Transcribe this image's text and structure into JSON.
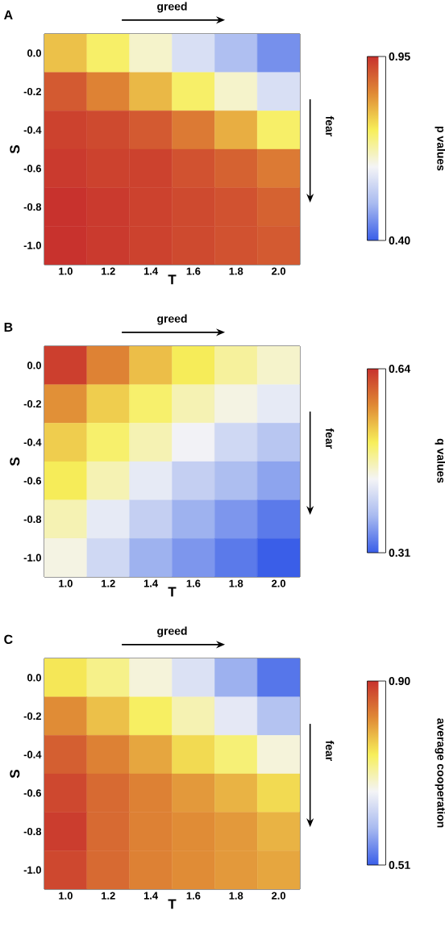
{
  "chart_data": [
    {
      "type": "heatmap",
      "title": "A",
      "xlabel": "T",
      "ylabel": "S",
      "clabel": "p values",
      "annotations": [
        "greed",
        "fear"
      ],
      "categories": [
        "1.0",
        "1.2",
        "1.4",
        "1.6",
        "1.8",
        "2.0"
      ],
      "y_categories": [
        "0.0",
        "-0.2",
        "-0.4",
        "-0.6",
        "-0.8",
        "-1.0"
      ],
      "clim": [
        0.4,
        0.95
      ],
      "cticks": [
        {
          "value": 0.4,
          "label": "0.40"
        },
        {
          "value": 0.95,
          "label": "0.95"
        }
      ],
      "colors": [
        "#3a5ee8",
        "#a8baf0",
        "#f4f4f6",
        "#f7ef5a",
        "#e08a35",
        "#c8322d"
      ],
      "cells": [
        [
          0.78,
          0.72,
          0.65,
          0.58,
          0.52,
          0.46
        ],
        [
          0.9,
          0.85,
          0.79,
          0.72,
          0.65,
          0.58
        ],
        [
          0.93,
          0.92,
          0.9,
          0.86,
          0.8,
          0.72
        ],
        [
          0.94,
          0.93,
          0.93,
          0.91,
          0.89,
          0.86
        ],
        [
          0.95,
          0.94,
          0.93,
          0.92,
          0.91,
          0.89
        ],
        [
          0.95,
          0.94,
          0.93,
          0.92,
          0.91,
          0.9
        ]
      ]
    },
    {
      "type": "heatmap",
      "title": "B",
      "xlabel": "T",
      "ylabel": "S",
      "clabel": "q values",
      "annotations": [
        "greed",
        "fear"
      ],
      "categories": [
        "1.0",
        "1.2",
        "1.4",
        "1.6",
        "1.8",
        "2.0"
      ],
      "y_categories": [
        "0.0",
        "-0.2",
        "-0.4",
        "-0.6",
        "-0.8",
        "-1.0"
      ],
      "clim": [
        0.31,
        0.64
      ],
      "cticks": [
        {
          "value": 0.31,
          "label": "0.31"
        },
        {
          "value": 0.64,
          "label": "0.64"
        }
      ],
      "colors": [
        "#3a5ee8",
        "#a8baf0",
        "#f4f4f6",
        "#f7ef5a",
        "#e08a35",
        "#c8322d"
      ],
      "cells": [
        [
          0.63,
          0.58,
          0.54,
          0.51,
          0.48,
          0.46
        ],
        [
          0.57,
          0.53,
          0.5,
          0.47,
          0.45,
          0.43
        ],
        [
          0.53,
          0.5,
          0.47,
          0.44,
          0.41,
          0.39
        ],
        [
          0.51,
          0.47,
          0.43,
          0.4,
          0.38,
          0.36
        ],
        [
          0.47,
          0.43,
          0.4,
          0.37,
          0.35,
          0.33
        ],
        [
          0.45,
          0.41,
          0.37,
          0.35,
          0.33,
          0.31
        ]
      ]
    },
    {
      "type": "heatmap",
      "title": "C",
      "xlabel": "T",
      "ylabel": "S",
      "clabel": "average cooperation",
      "annotations": [
        "greed",
        "fear"
      ],
      "categories": [
        "1.0",
        "1.2",
        "1.4",
        "1.6",
        "1.8",
        "2.0"
      ],
      "y_categories": [
        "0.0",
        "-0.2",
        "-0.4",
        "-0.6",
        "-0.8",
        "-1.0"
      ],
      "clim": [
        0.51,
        0.9
      ],
      "cticks": [
        {
          "value": 0.51,
          "label": "0.51"
        },
        {
          "value": 0.9,
          "label": "0.90"
        }
      ],
      "colors": [
        "#3a5ee8",
        "#a8baf0",
        "#f4f4f6",
        "#f7ef5a",
        "#e08a35",
        "#c8322d"
      ],
      "cells": [
        [
          0.75,
          0.72,
          0.68,
          0.64,
          0.58,
          0.53
        ],
        [
          0.82,
          0.78,
          0.74,
          0.7,
          0.65,
          0.6
        ],
        [
          0.86,
          0.83,
          0.8,
          0.76,
          0.73,
          0.68
        ],
        [
          0.88,
          0.85,
          0.83,
          0.81,
          0.79,
          0.76
        ],
        [
          0.89,
          0.85,
          0.83,
          0.82,
          0.81,
          0.79
        ],
        [
          0.88,
          0.85,
          0.83,
          0.82,
          0.81,
          0.8
        ]
      ]
    }
  ]
}
